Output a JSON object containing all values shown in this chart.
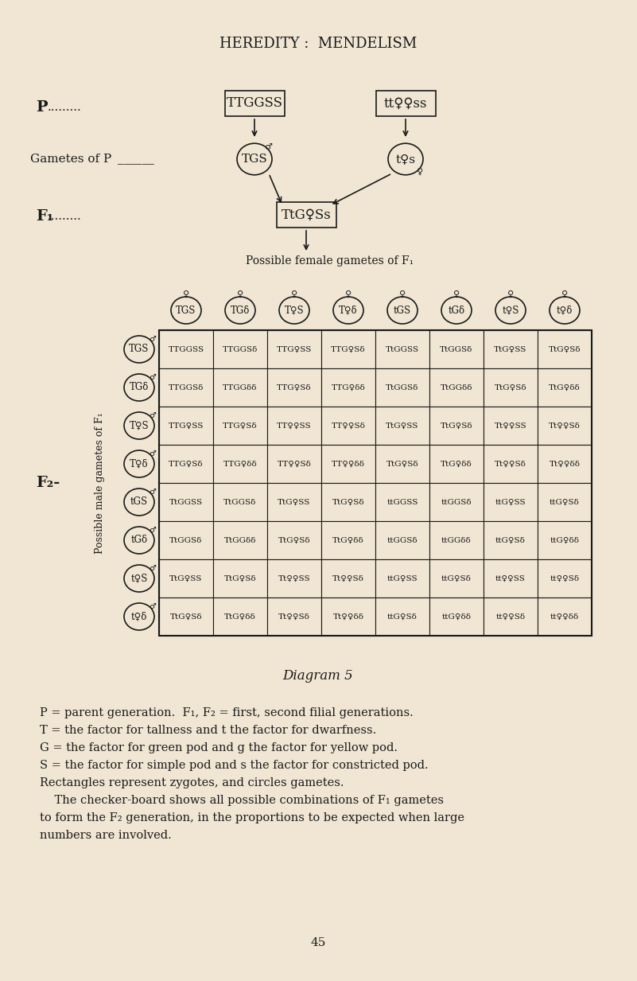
{
  "bg_color": "#f0e6d3",
  "title": "HEREDITY :  MENDELISM",
  "page_number": "45",
  "diagram_label": "Diagram 5",
  "P_label": "P",
  "gametes_label": "Gametes of P",
  "F1_label": "F₁",
  "F2_label": "F₂-",
  "P_left_zygote": "TTGGSS",
  "P_right_zygote": "tt♀♀ss",
  "gamete_left": "TGS",
  "gamete_right": "t♀s",
  "F1_zygote": "TtG♀Ss",
  "female_gametes_label": "Possible female gametes of F₁",
  "male_gametes_label": "Possible male gametes of F₁",
  "col_headers": [
    "TGS",
    "TGδ",
    "T♀S",
    "T♀δ",
    "tGS",
    "tGδ",
    "t♀S",
    "t♀δ"
  ],
  "row_headers": [
    "TGS",
    "TGδ",
    "T♀S",
    "T♀δ",
    "tGS",
    "tGδ",
    "t♀S",
    "t♀δ"
  ],
  "grid_data": [
    [
      "TTGGSS",
      "TTGGSδ",
      "TTG♀SS",
      "TTG♀Sδ",
      "TtGGSS",
      "TtGGSδ",
      "TtG♀SS",
      "TtG♀Sδ"
    ],
    [
      "TTGGSδ",
      "TTGGδδ",
      "TTG♀Sδ",
      "TTG♀δδ",
      "TtGGSδ",
      "TtGGδδ",
      "TtG♀Sδ",
      "TtG♀δδ"
    ],
    [
      "TTG♀SS",
      "TTG♀Sδ",
      "TT♀♀SS",
      "TT♀♀Sδ",
      "TtG♀SS",
      "TtG♀Sδ",
      "Tt♀♀SS",
      "Tt♀♀Sδ"
    ],
    [
      "TTG♀Sδ",
      "TTG♀δδ",
      "TT♀♀Sδ",
      "TT♀♀δδ",
      "TtG♀Sδ",
      "TtG♀δδ",
      "Tt♀♀Sδ",
      "Tt♀♀δδ"
    ],
    [
      "TtGGSS",
      "TtGGSδ",
      "TtG♀SS",
      "TtG♀Sδ",
      "ttGGSS",
      "ttGGSδ",
      "ttG♀SS",
      "ttG♀Sδ"
    ],
    [
      "TtGGSδ",
      "TtGGδδ",
      "TtG♀Sδ",
      "TtG♀δδ",
      "ttGGSδ",
      "ttGGδδ",
      "ttG♀Sδ",
      "ttG♀δδ"
    ],
    [
      "TtG♀SS",
      "TtG♀Sδ",
      "Tt♀♀SS",
      "Tt♀♀Sδ",
      "ttG♀SS",
      "ttG♀Sδ",
      "tt♀♀SS",
      "tt♀♀Sδ"
    ],
    [
      "TtG♀Sδ",
      "TtG♀δδ",
      "Tt♀♀Sδ",
      "Tt♀♀δδ",
      "ttG♀Sδ",
      "ttG♀δδ",
      "tt♀♀Sδ",
      "tt♀♀δδ"
    ]
  ],
  "caption_lines": [
    "P = parent generation.  F₁, F₂ = first, second filial generations.",
    "T = the factor for tallness and t the factor for dwarfness.",
    "G = the factor for green pod and g the factor for yellow pod.",
    "S = the factor for simple pod and s the factor for constricted pod.",
    "Rectangles represent zygotes, and circles gametes.",
    "    The checker-board shows all possible combinations of F₁ gametes",
    "to form the F₂ generation, in the proportions to be expected when large",
    "numbers are involved."
  ]
}
